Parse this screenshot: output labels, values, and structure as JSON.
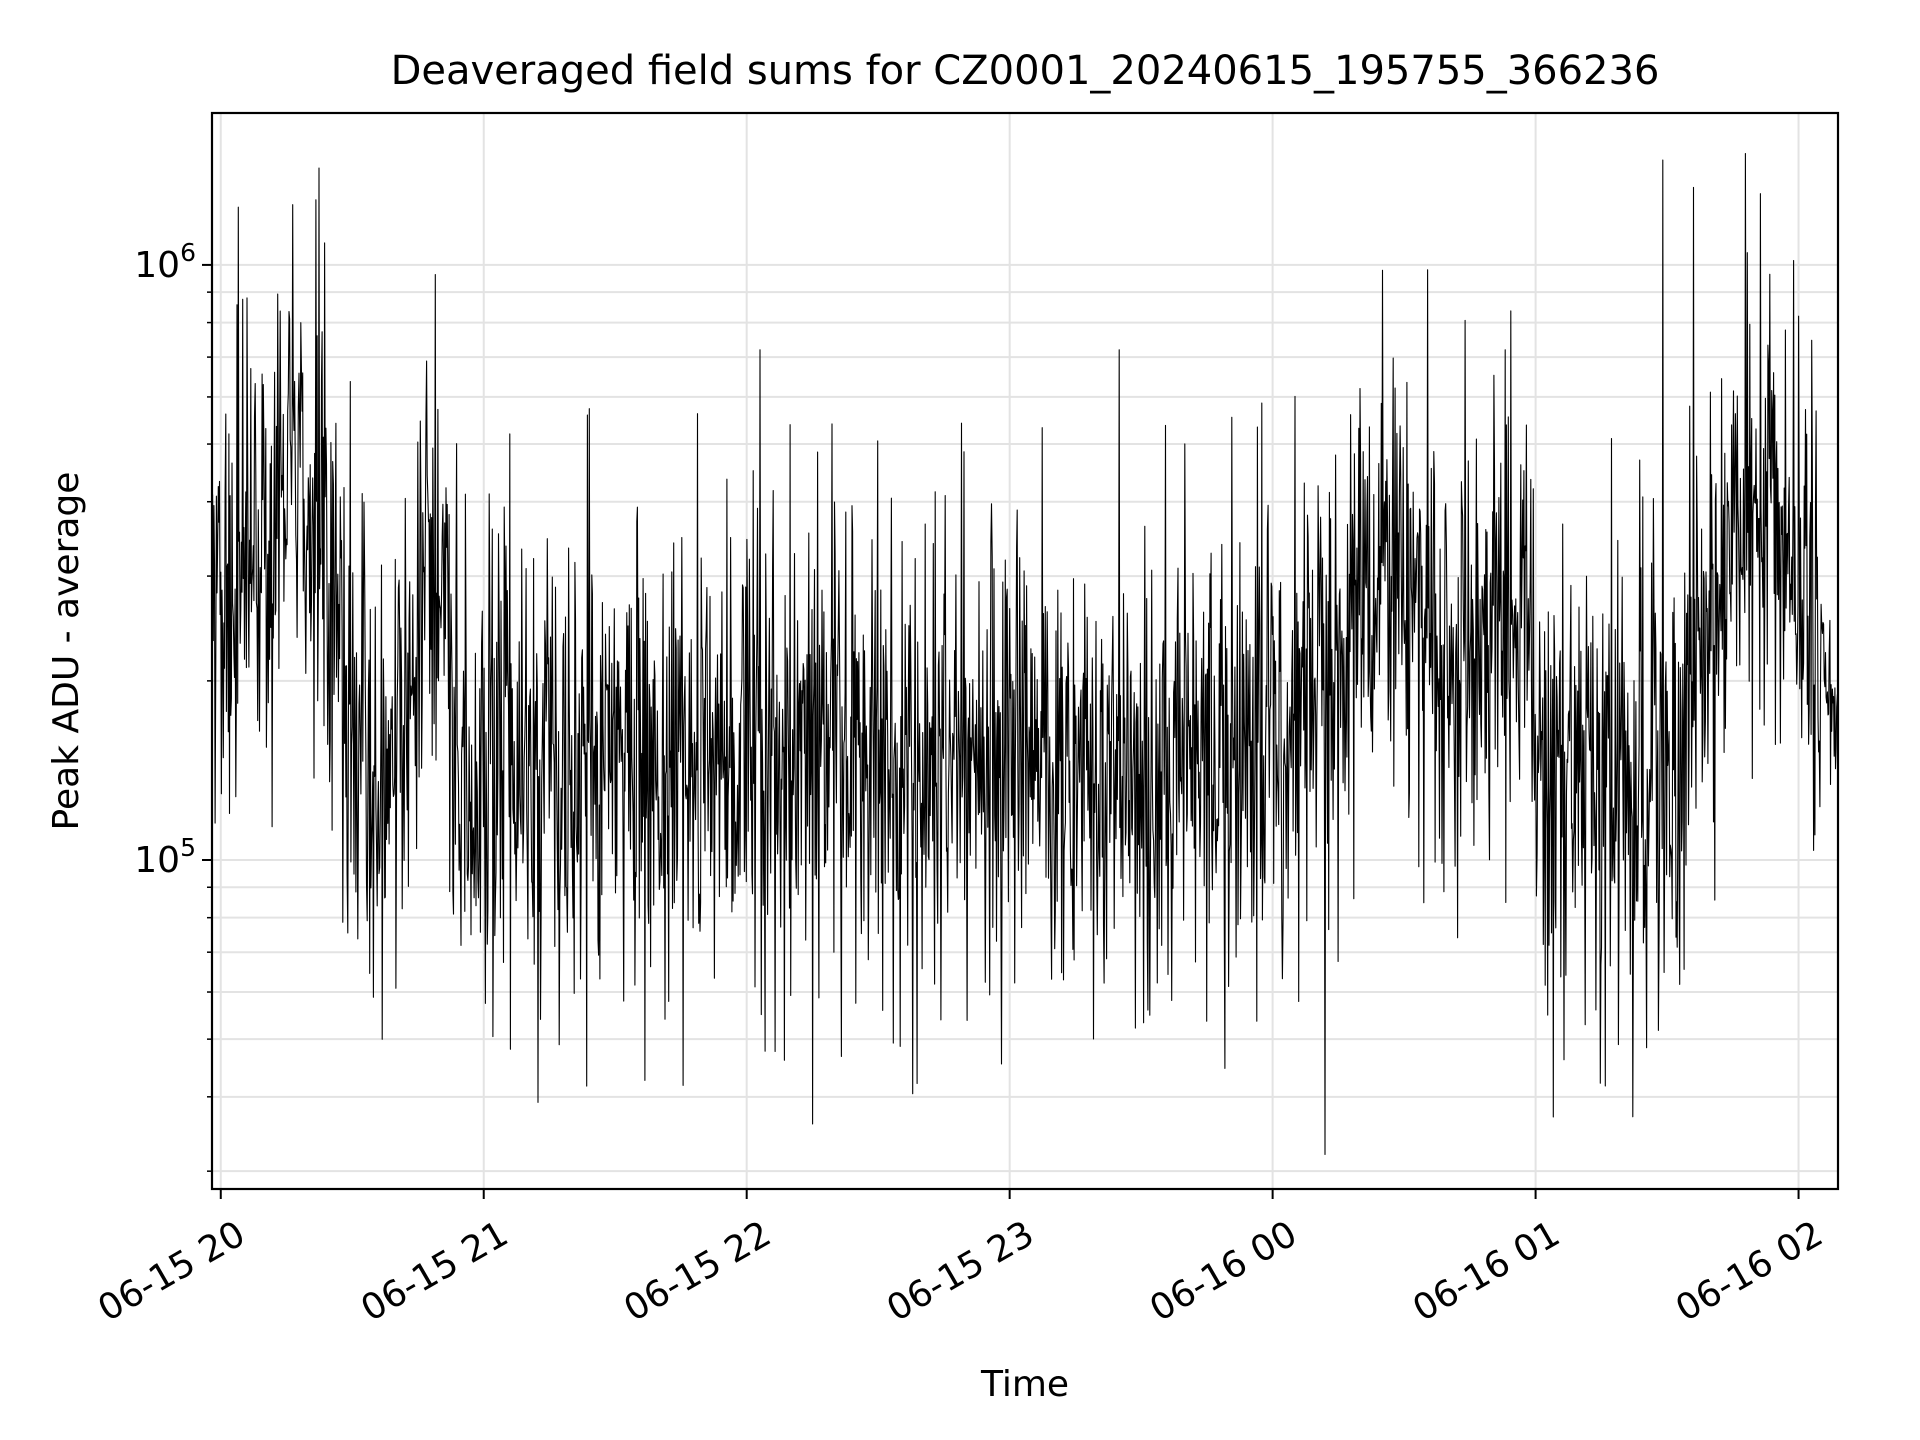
{
  "chart_data": {
    "type": "line",
    "title": "Deaveraged field sums for CZ0001_20240615_195755_366236",
    "xlabel": "Time",
    "ylabel": "Peak ADU - average",
    "yscale": "log",
    "ylim": [
      28000,
      1800000
    ],
    "xlim": [
      "2024-06-15 19:58",
      "2024-06-16 02:09"
    ],
    "grid": true,
    "line_color": "#000000",
    "x_ticks": [
      {
        "label": "06-15 20",
        "value": "2024-06-15 20:00"
      },
      {
        "label": "06-15 21",
        "value": "2024-06-15 21:00"
      },
      {
        "label": "06-15 22",
        "value": "2024-06-15 22:00"
      },
      {
        "label": "06-15 23",
        "value": "2024-06-15 23:00"
      },
      {
        "label": "06-16 00",
        "value": "2024-06-16 00:00"
      },
      {
        "label": "06-16 01",
        "value": "2024-06-16 01:00"
      },
      {
        "label": "06-16 02",
        "value": "2024-06-16 02:00"
      }
    ],
    "y_ticks": [
      {
        "base": "10",
        "exp": "5",
        "value": 100000
      },
      {
        "base": "10",
        "exp": "6",
        "value": 1000000
      }
    ],
    "series": [
      {
        "x_start": "2024-06-15 19:58",
        "x_end": "2024-06-16 02:09",
        "profile": [
          {
            "x": "2024-06-15 19:58",
            "y": 230000
          },
          {
            "x": "2024-06-15 20:05",
            "y": 330000
          },
          {
            "x": "2024-06-15 20:12",
            "y": 380000
          },
          {
            "x": "2024-06-15 20:18",
            "y": 450000
          },
          {
            "x": "2024-06-15 20:24",
            "y": 380000
          },
          {
            "x": "2024-06-15 20:28",
            "y": 180000
          },
          {
            "x": "2024-06-15 20:36",
            "y": 155000
          },
          {
            "x": "2024-06-15 20:42",
            "y": 170000
          },
          {
            "x": "2024-06-15 20:47",
            "y": 330000
          },
          {
            "x": "2024-06-15 20:52",
            "y": 250000
          },
          {
            "x": "2024-06-15 20:55",
            "y": 125000
          },
          {
            "x": "2024-06-15 21:30",
            "y": 150000
          },
          {
            "x": "2024-06-15 22:00",
            "y": 145000
          },
          {
            "x": "2024-06-15 22:30",
            "y": 140000
          },
          {
            "x": "2024-06-15 23:00",
            "y": 150000
          },
          {
            "x": "2024-06-15 23:30",
            "y": 140000
          },
          {
            "x": "2024-06-16 00:00",
            "y": 150000
          },
          {
            "x": "2024-06-16 00:15",
            "y": 210000
          },
          {
            "x": "2024-06-16 00:25",
            "y": 330000
          },
          {
            "x": "2024-06-16 00:40",
            "y": 220000
          },
          {
            "x": "2024-06-16 00:50",
            "y": 220000
          },
          {
            "x": "2024-06-16 00:58",
            "y": 310000
          },
          {
            "x": "2024-06-16 01:00",
            "y": 140000
          },
          {
            "x": "2024-06-16 01:20",
            "y": 130000
          },
          {
            "x": "2024-06-16 01:33",
            "y": 130000
          },
          {
            "x": "2024-06-16 01:37",
            "y": 220000
          },
          {
            "x": "2024-06-16 01:45",
            "y": 350000
          },
          {
            "x": "2024-06-16 01:50",
            "y": 420000
          },
          {
            "x": "2024-06-16 01:58",
            "y": 320000
          },
          {
            "x": "2024-06-16 02:05",
            "y": 240000
          },
          {
            "x": "2024-06-16 02:09",
            "y": 150000
          }
        ],
        "spikes": [
          {
            "x": "2024-06-15 20:04",
            "y": 1250000
          },
          {
            "x": "2024-06-15 20:06",
            "y": 880000
          },
          {
            "x": "2024-06-15 20:22",
            "y": 760000
          },
          {
            "x": "2024-06-15 21:06",
            "y": 520000
          },
          {
            "x": "2024-06-15 22:03",
            "y": 720000
          },
          {
            "x": "2024-06-15 23:25",
            "y": 720000
          },
          {
            "x": "2024-06-16 00:20",
            "y": 620000
          },
          {
            "x": "2024-06-16 00:53",
            "y": 720000
          },
          {
            "x": "2024-06-16 01:29",
            "y": 1500000
          },
          {
            "x": "2024-06-16 01:36",
            "y": 1350000
          },
          {
            "x": "2024-06-16 02:00",
            "y": 820000
          },
          {
            "x": "2024-06-15 22:15",
            "y": 36000
          },
          {
            "x": "2024-06-16 00:12",
            "y": 32000
          },
          {
            "x": "2024-06-16 01:04",
            "y": 37000
          }
        ]
      }
    ]
  }
}
